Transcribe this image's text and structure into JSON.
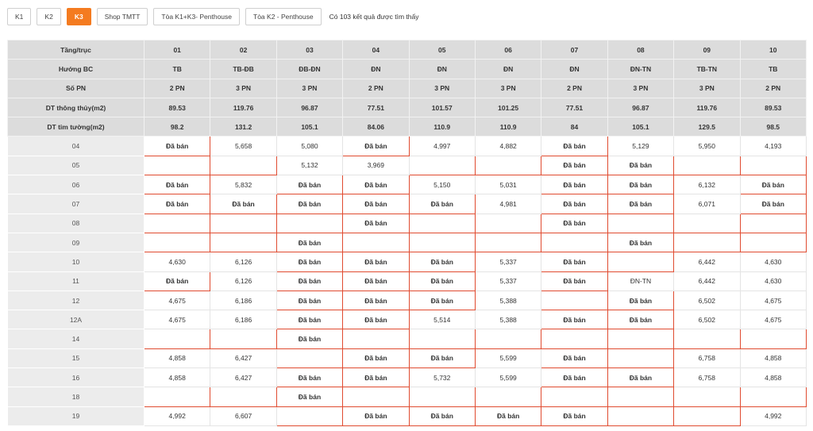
{
  "tabs": [
    {
      "label": "K1",
      "active": false
    },
    {
      "label": "K2",
      "active": false
    },
    {
      "label": "K3",
      "active": true
    },
    {
      "label": "Shop TMTT",
      "active": false
    },
    {
      "label": "Tòa K1+K3- Penthouse",
      "active": false
    },
    {
      "label": "Tòa K2 - Penthouse",
      "active": false
    }
  ],
  "result_text": "Có 103 kết quả được tìm thấy",
  "sold_label": "Đã bán",
  "colors": {
    "accent": "#f47b20",
    "sold": "#d63a1f",
    "header_bg": "#dcdcdc"
  },
  "table": {
    "header_rows": [
      {
        "label": "Tầng/trục",
        "values": [
          "01",
          "02",
          "03",
          "04",
          "05",
          "06",
          "07",
          "08",
          "09",
          "10"
        ]
      },
      {
        "label": "Hướng BC",
        "values": [
          "TB",
          "TB-ĐB",
          "ĐB-ĐN",
          "ĐN",
          "ĐN",
          "ĐN",
          "ĐN",
          "ĐN-TN",
          "TB-TN",
          "TB"
        ]
      },
      {
        "label": "Số PN",
        "values": [
          "2 PN",
          "3 PN",
          "3 PN",
          "2 PN",
          "3 PN",
          "3 PN",
          "2 PN",
          "3 PN",
          "3 PN",
          "2 PN"
        ]
      },
      {
        "label": "DT thông thủy(m2)",
        "values": [
          "89.53",
          "119.76",
          "96.87",
          "77.51",
          "101.57",
          "101.25",
          "77.51",
          "96.87",
          "119.76",
          "89.53"
        ]
      },
      {
        "label": "DT tim tường(m2)",
        "values": [
          "98.2",
          "131.2",
          "105.1",
          "84.06",
          "110.9",
          "110.9",
          "84",
          "105.1",
          "129.5",
          "98.5"
        ]
      }
    ],
    "floors": [
      {
        "floor": "04",
        "cells": [
          "S",
          "5,658",
          "5,080",
          "S",
          "4,997",
          "4,882",
          "S",
          "5,129",
          "5,950",
          "4,193"
        ]
      },
      {
        "floor": "05",
        "cells": [
          "X",
          "X",
          "5,132",
          "3,969",
          "X",
          "X",
          "S",
          "S",
          "X",
          "X"
        ]
      },
      {
        "floor": "06",
        "cells": [
          "S",
          "5,832",
          "S",
          "S",
          "5,150",
          "5,031",
          "S",
          "S",
          "6,132",
          "S"
        ]
      },
      {
        "floor": "07",
        "cells": [
          "S",
          "S",
          "S",
          "S",
          "S",
          "4,981",
          "S",
          "S",
          "6,071",
          "S"
        ]
      },
      {
        "floor": "08",
        "cells": [
          "X",
          "X",
          "X",
          "S",
          "X",
          "X",
          "S",
          "X",
          "X",
          "X"
        ]
      },
      {
        "floor": "09",
        "cells": [
          "X",
          "X",
          "S",
          "X",
          "X",
          "X",
          "X",
          "S",
          "X",
          "X"
        ]
      },
      {
        "floor": "10",
        "cells": [
          "4,630",
          "6,126",
          "S",
          "S",
          "S",
          "5,337",
          "S",
          "X",
          "6,442",
          "4,630"
        ]
      },
      {
        "floor": "11",
        "cells": [
          "S",
          "6,126",
          "S",
          "S",
          "S",
          "5,337",
          "S",
          "ĐN-TN",
          "6,442",
          "4,630"
        ]
      },
      {
        "floor": "12",
        "cells": [
          "4,675",
          "6,186",
          "S",
          "S",
          "S",
          "5,388",
          "X",
          "S",
          "6,502",
          "4,675"
        ]
      },
      {
        "floor": "12A",
        "cells": [
          "4,675",
          "6,186",
          "S",
          "S",
          "5,514",
          "5,388",
          "S",
          "S",
          "6,502",
          "4,675"
        ]
      },
      {
        "floor": "14",
        "cells": [
          "X",
          "X",
          "S",
          "X",
          "X",
          "X",
          "X",
          "X",
          "X",
          "X"
        ]
      },
      {
        "floor": "15",
        "cells": [
          "4,858",
          "6,427",
          "X",
          "S",
          "S",
          "5,599",
          "S",
          "X",
          "6,758",
          "4,858"
        ]
      },
      {
        "floor": "16",
        "cells": [
          "4,858",
          "6,427",
          "S",
          "S",
          "5,732",
          "5,599",
          "S",
          "S",
          "6,758",
          "4,858"
        ]
      },
      {
        "floor": "18",
        "cells": [
          "X",
          "X",
          "S",
          "X",
          "X",
          "X",
          "X",
          "X",
          "X",
          "X"
        ]
      },
      {
        "floor": "19",
        "cells": [
          "4,992",
          "6,607",
          "X",
          "S",
          "S",
          "S",
          "S",
          "X",
          "X",
          "4,992"
        ]
      }
    ]
  }
}
